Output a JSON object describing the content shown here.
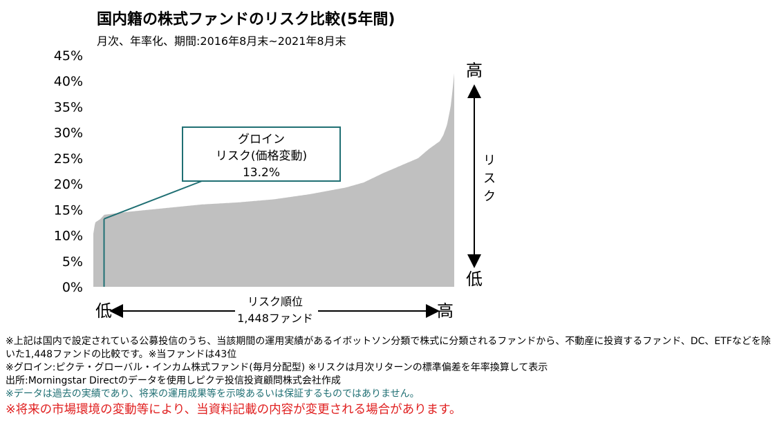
{
  "title": "国内籍の株式ファンドのリスク比較(5年間)",
  "subtitle": "月次、年率化、期間:2016年8月末~2021年8月末",
  "chart_data": {
    "type": "bar",
    "description_title": "国内籍の株式ファンドのリスク比較(5年間)",
    "ylim": [
      0,
      45
    ],
    "yticks": [
      "0%",
      "5%",
      "10%",
      "15%",
      "20%",
      "25%",
      "30%",
      "35%",
      "40%",
      "45%"
    ],
    "x_count": 1448,
    "x_label_line1": "リスク順位",
    "x_label_line2": "1,448ファンド",
    "x_low_label": "低",
    "x_high_label": "高",
    "y_high_label": "高",
    "y_low_label": "低",
    "y_side_label": "リスク",
    "bar_color": "#c0c0c0",
    "accent_color": "#1f6f73",
    "curve_rank_fraction": [
      0,
      0.005,
      0.02,
      0.03,
      0.1,
      0.2,
      0.3,
      0.4,
      0.5,
      0.6,
      0.7,
      0.75,
      0.8,
      0.85,
      0.9,
      0.93,
      0.96,
      0.97,
      0.98,
      0.99,
      0.995,
      1.0
    ],
    "curve_risk_percent": [
      10.3,
      12.5,
      13.2,
      14.0,
      14.6,
      15.3,
      16.0,
      16.4,
      17.0,
      18.0,
      19.3,
      20.3,
      22.0,
      23.5,
      25.0,
      26.8,
      28.3,
      29.5,
      31.5,
      35.0,
      38.0,
      41.5
    ],
    "highlight": {
      "rank": 43,
      "value": 13.2,
      "callout_line1": "グロイン",
      "callout_line2": "リスク(価格変動)",
      "callout_line3": "13.2%"
    }
  },
  "notes": {
    "line1": "※上記は国内で設定されている公募投信のうち、当該期間の運用実績があるイボットソン分類で株式に分類されるファンドから、不動産に投資するファンド、DC、ETFなどを除いた1,448ファンドの比較です。※当ファンドは43位",
    "line2": "※グロイン:ピクテ・グローバル・インカム株式ファンド(毎月分配型) ※リスクは月次リターンの標準偏差を年率換算して表示",
    "line3": "出所:Morningstar Directのデータを使用しピクテ投信投資顧問株式会社作成",
    "line4": "※データは過去の実績であり、将来の運用成果等を示唆あるいは保証するものではありません。",
    "line5": "※将来の市場環境の変動等により、当資料記載の内容が変更される場合があります。"
  }
}
